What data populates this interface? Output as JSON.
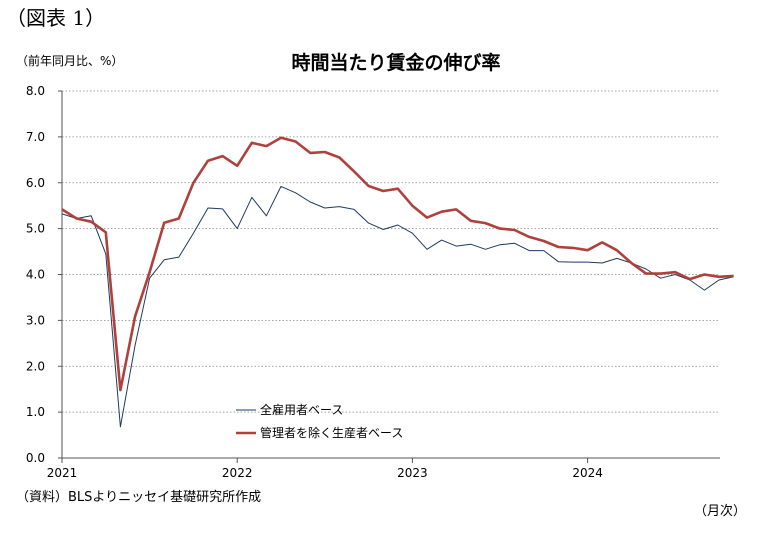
{
  "figure_label": "（図表 1）",
  "unit_label": "（前年同月比、%）",
  "x_unit_label": "（月次）",
  "source_note": "（資料）BLSよりニッセイ基礎研究所作成",
  "colors": {
    "series1": "#1f3a5f",
    "series2": "#b0403c",
    "grid": "#888888",
    "axis": "#555555"
  },
  "chart_data": {
    "type": "line",
    "title": "時間当たり賃金の伸び率",
    "ylim": [
      0,
      8
    ],
    "y_ticks": [
      "0.0",
      "1.0",
      "2.0",
      "3.0",
      "4.0",
      "5.0",
      "6.0",
      "7.0",
      "8.0"
    ],
    "x_ticks": [
      "2021",
      "2022",
      "2023",
      "2024"
    ],
    "grid": "horizontal dotted",
    "legend_position": "lower-left",
    "start_month": "2021-01",
    "series": [
      {
        "name": "全雇用者ベース",
        "color": "#1f3a5f",
        "values": [
          5.32,
          5.22,
          5.28,
          4.45,
          0.68,
          2.45,
          3.92,
          4.32,
          4.38,
          4.9,
          5.45,
          5.43,
          5.0,
          5.68,
          5.28,
          5.92,
          5.78,
          5.58,
          5.45,
          5.48,
          5.42,
          5.12,
          4.98,
          5.08,
          4.9,
          4.55,
          4.75,
          4.62,
          4.66,
          4.55,
          4.65,
          4.68,
          4.52,
          4.52,
          4.28,
          4.27,
          4.27,
          4.25,
          4.35,
          4.25,
          4.12,
          3.92,
          4.0,
          3.88,
          3.66,
          3.88,
          3.95
        ]
      },
      {
        "name": "管理者を除く生産者ベース",
        "color": "#b0403c",
        "values": [
          5.42,
          5.22,
          5.15,
          4.92,
          1.48,
          3.08,
          4.05,
          5.13,
          5.22,
          6.0,
          6.48,
          6.58,
          6.37,
          6.87,
          6.8,
          6.98,
          6.9,
          6.65,
          6.67,
          6.55,
          6.25,
          5.93,
          5.82,
          5.87,
          5.5,
          5.24,
          5.37,
          5.42,
          5.17,
          5.12,
          5.0,
          4.97,
          4.82,
          4.73,
          4.6,
          4.58,
          4.53,
          4.7,
          4.53,
          4.25,
          4.02,
          4.02,
          4.05,
          3.9,
          4.0,
          3.95,
          3.97
        ]
      }
    ]
  }
}
